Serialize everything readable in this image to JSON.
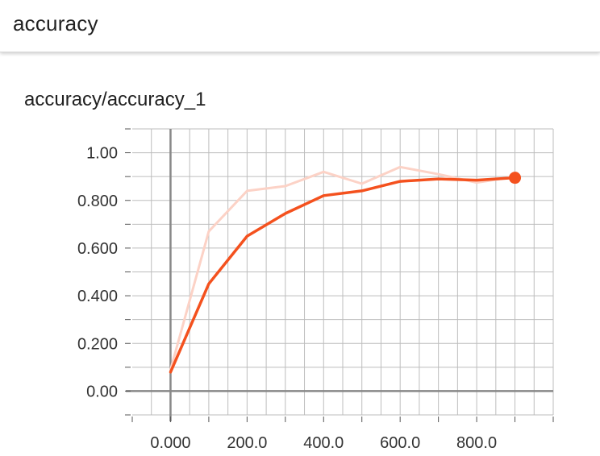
{
  "header": {
    "title": "accuracy"
  },
  "card": {
    "title": "accuracy/accuracy_1"
  },
  "colors": {
    "accent": "#f4511e",
    "raw_line": "#fcd2c6",
    "axis": "#888888",
    "grid": "#bdbdbd"
  },
  "chart_data": {
    "type": "line",
    "title": "accuracy/accuracy_1",
    "xlabel": "",
    "ylabel": "",
    "xlim": [
      -100,
      1000
    ],
    "ylim": [
      -0.1,
      1.1
    ],
    "xticks": [
      0,
      200,
      400,
      600,
      800
    ],
    "xtick_labels": [
      "0.000",
      "200.0",
      "400.0",
      "600.0",
      "800.0"
    ],
    "yticks": [
      0,
      0.2,
      0.4,
      0.6,
      0.8,
      1.0
    ],
    "ytick_labels": [
      "0.00",
      "0.200",
      "0.400",
      "0.600",
      "0.800",
      "1.00"
    ],
    "grid": true,
    "series": [
      {
        "style": "raw",
        "x": [
          0,
          100,
          200,
          300,
          400,
          500,
          600,
          700,
          800,
          900
        ],
        "values": [
          0.09,
          0.67,
          0.84,
          0.86,
          0.92,
          0.87,
          0.94,
          0.91,
          0.875,
          0.9
        ]
      },
      {
        "style": "smoothed",
        "x": [
          0,
          100,
          200,
          300,
          400,
          500,
          600,
          700,
          800,
          900
        ],
        "values": [
          0.08,
          0.45,
          0.65,
          0.745,
          0.82,
          0.84,
          0.88,
          0.89,
          0.885,
          0.895
        ]
      }
    ]
  }
}
